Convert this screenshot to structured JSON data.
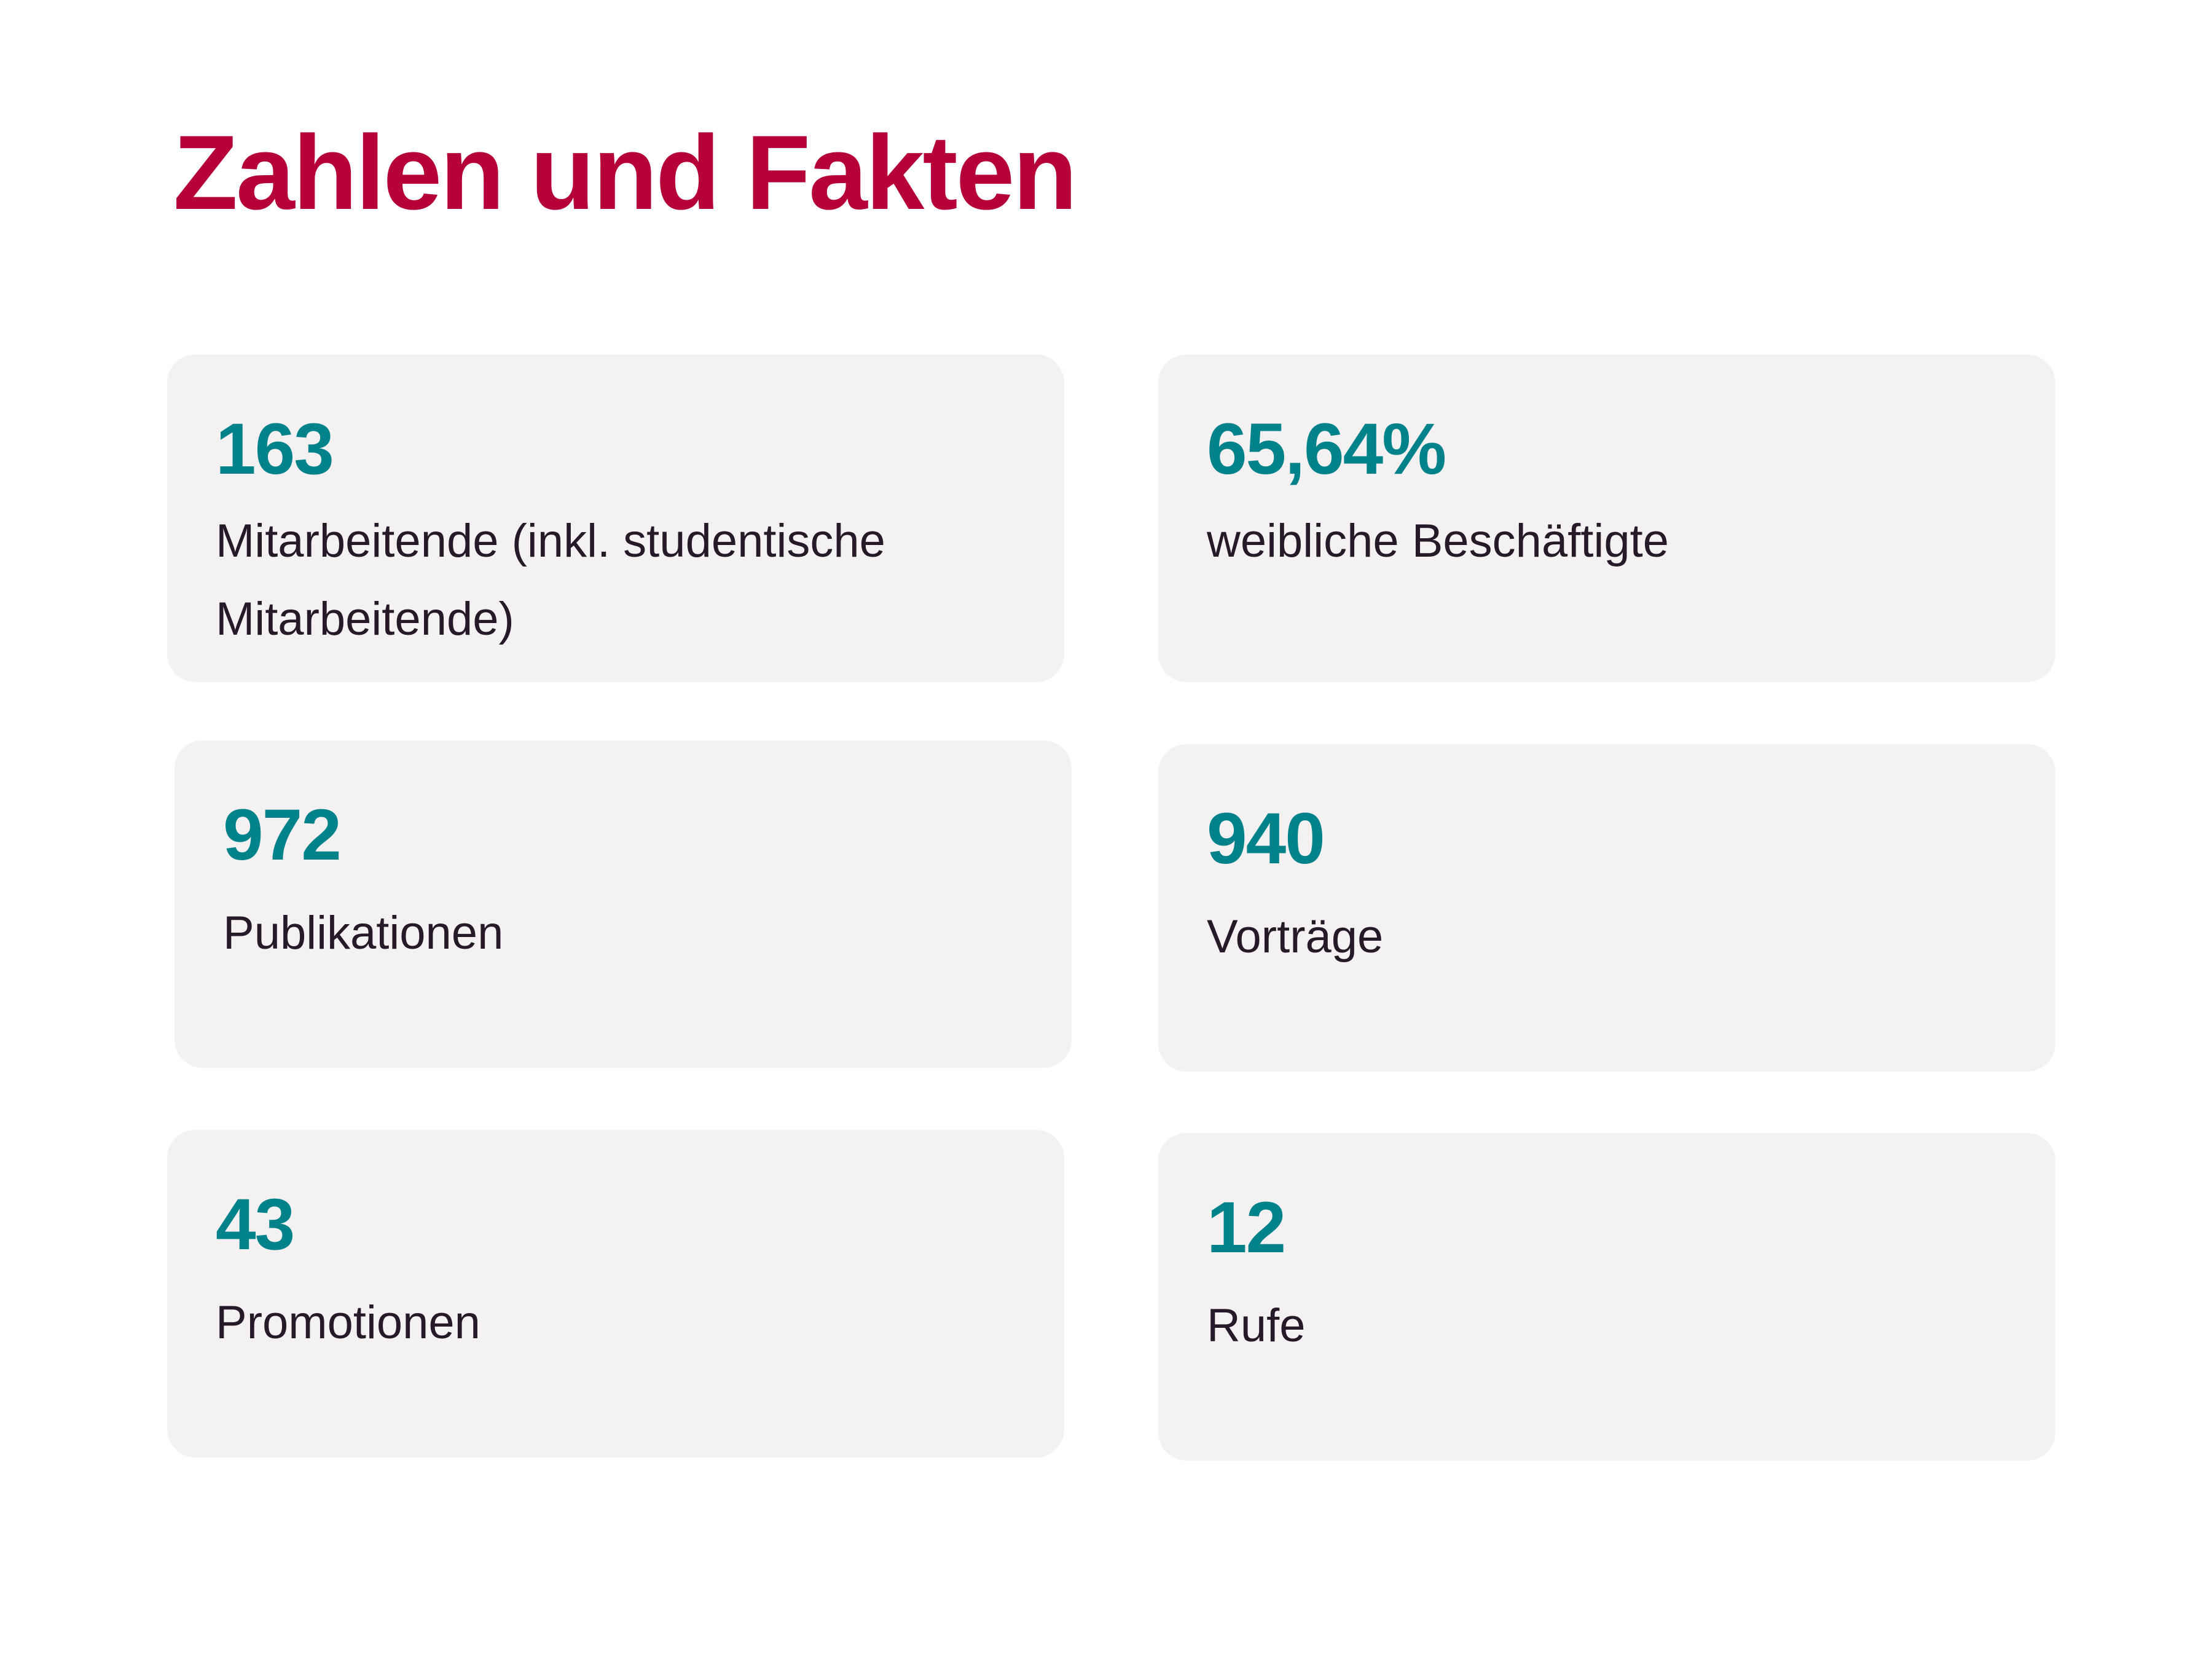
{
  "page": {
    "title": "Zahlen und Fakten"
  },
  "colors": {
    "title": "#b5003a",
    "number": "#00828a",
    "text": "#261a28",
    "card": "#f3f1f2"
  },
  "facts": [
    {
      "value": "163",
      "label": "Mitarbeitende (inkl. studentische Mitarbeitende)"
    },
    {
      "value": "65,64%",
      "label": "weibliche Beschäftigte"
    },
    {
      "value": "972",
      "label": "Publikationen"
    },
    {
      "value": "940",
      "label": "Vorträge"
    },
    {
      "value": "43",
      "label": "Promotionen"
    },
    {
      "value": "12",
      "label": "Rufe"
    }
  ]
}
